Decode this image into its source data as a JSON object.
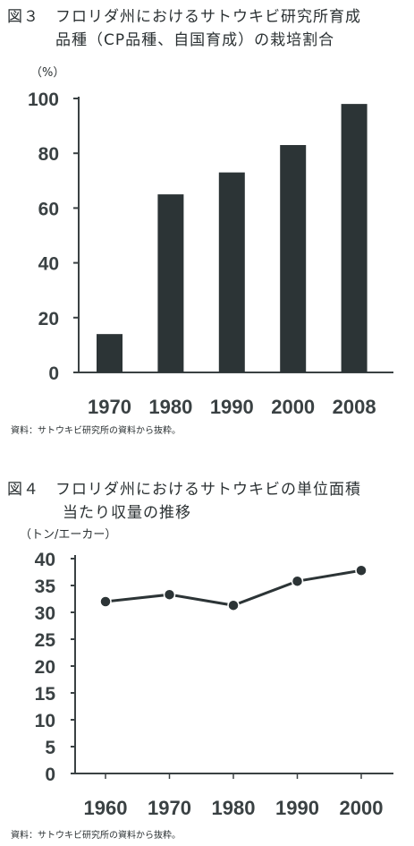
{
  "figures": [
    {
      "title_line1": "図３　フロリダ州におけるサトウキビ研究所育成",
      "title_line2": "品種（CP品種、自国育成）の栽培割合",
      "unit": "（%）",
      "source": "資料：サトウキビ研究所の資料から抜粋。"
    },
    {
      "title_line1": "図４　フロリダ州におけるサトウキビの単位面積",
      "title_line2": "当たり収量の推移",
      "unit": "（トン/エーカー）",
      "source": "資料：サトウキビ研究所の資料から抜粋。"
    }
  ],
  "colors": {
    "bar": "#2c3436",
    "axis": "#3a4143",
    "line": "#2c3436",
    "marker": "#2c3436"
  },
  "chart_data": [
    {
      "type": "bar",
      "title": "図３　フロリダ州におけるサトウキビ研究所育成品種（CP品種、自国育成）の栽培割合",
      "ylabel": "（%）",
      "categories": [
        "1970",
        "1980",
        "1990",
        "2000",
        "2008"
      ],
      "values": [
        14,
        65,
        73,
        83,
        98
      ],
      "ylim": [
        0,
        100
      ],
      "yticks": [
        "0",
        "20",
        "40",
        "60",
        "80",
        "100"
      ],
      "grid": false
    },
    {
      "type": "line",
      "title": "図４　フロリダ州におけるサトウキビの単位面積当たり収量の推移",
      "ylabel": "（トン/エーカー）",
      "x": [
        "1960",
        "1970",
        "1980",
        "1990",
        "2000"
      ],
      "values": [
        32,
        33.3,
        31.3,
        35.8,
        37.8
      ],
      "ylim": [
        0,
        40
      ],
      "yticks": [
        "0",
        "5",
        "10",
        "15",
        "20",
        "25",
        "30",
        "35",
        "40"
      ],
      "grid": false
    }
  ]
}
